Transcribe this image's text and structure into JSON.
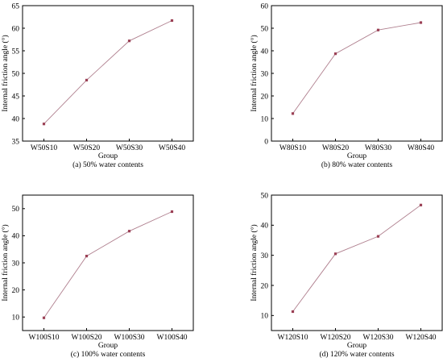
{
  "chart_data": [
    {
      "type": "line",
      "categories": [
        "W50S10",
        "W50S20",
        "W50S30",
        "W50S40"
      ],
      "series": [
        {
          "values": [
            38.8,
            48.5,
            57.2,
            61.7
          ]
        }
      ],
      "xlabel": "Group",
      "ylabel": "Internal friction angle (°)",
      "caption": "(a) 50% water contents",
      "ylim": [
        35,
        65
      ],
      "yticks": [
        "35",
        "40",
        "45",
        "50",
        "55",
        "60",
        "65"
      ],
      "grid": false,
      "colors": {
        "line": "#b0808f",
        "marker": "#9b4055"
      }
    },
    {
      "type": "line",
      "categories": [
        "W80S10",
        "W80S20",
        "W80S30",
        "W80S40"
      ],
      "series": [
        {
          "values": [
            12.2,
            38.7,
            49.2,
            52.5
          ]
        }
      ],
      "xlabel": "Group",
      "ylabel": "Internal friction angle (°)",
      "caption": "(b) 80% water contents",
      "ylim": [
        0,
        60
      ],
      "yticks": [
        "0",
        "10",
        "20",
        "30",
        "40",
        "50",
        "60"
      ],
      "grid": false,
      "colors": {
        "line": "#b0808f",
        "marker": "#9b4055"
      }
    },
    {
      "type": "line",
      "categories": [
        "W100S10",
        "W100S20",
        "W100S30",
        "W100S40"
      ],
      "series": [
        {
          "values": [
            9.7,
            32.5,
            41.7,
            48.9
          ]
        }
      ],
      "xlabel": "Group",
      "ylabel": "Internal friction angle (°)",
      "caption": "(c) 100% water contents",
      "ylim": [
        5,
        55
      ],
      "yticks": [
        "10",
        "20",
        "30",
        "40",
        "50"
      ],
      "grid": false,
      "colors": {
        "line": "#b0808f",
        "marker": "#9b4055"
      }
    },
    {
      "type": "line",
      "categories": [
        "W120S10",
        "W120S20",
        "W120S30",
        "W120S40"
      ],
      "series": [
        {
          "values": [
            11.3,
            30.5,
            36.3,
            46.7
          ]
        }
      ],
      "xlabel": "Group",
      "ylabel": "Internal friction angle (°)",
      "caption": "(d) 120% water contents",
      "ylim": [
        5,
        50
      ],
      "yticks": [
        "10",
        "20",
        "30",
        "40",
        "50"
      ],
      "grid": false,
      "colors": {
        "line": "#b0808f",
        "marker": "#9b4055"
      }
    }
  ]
}
